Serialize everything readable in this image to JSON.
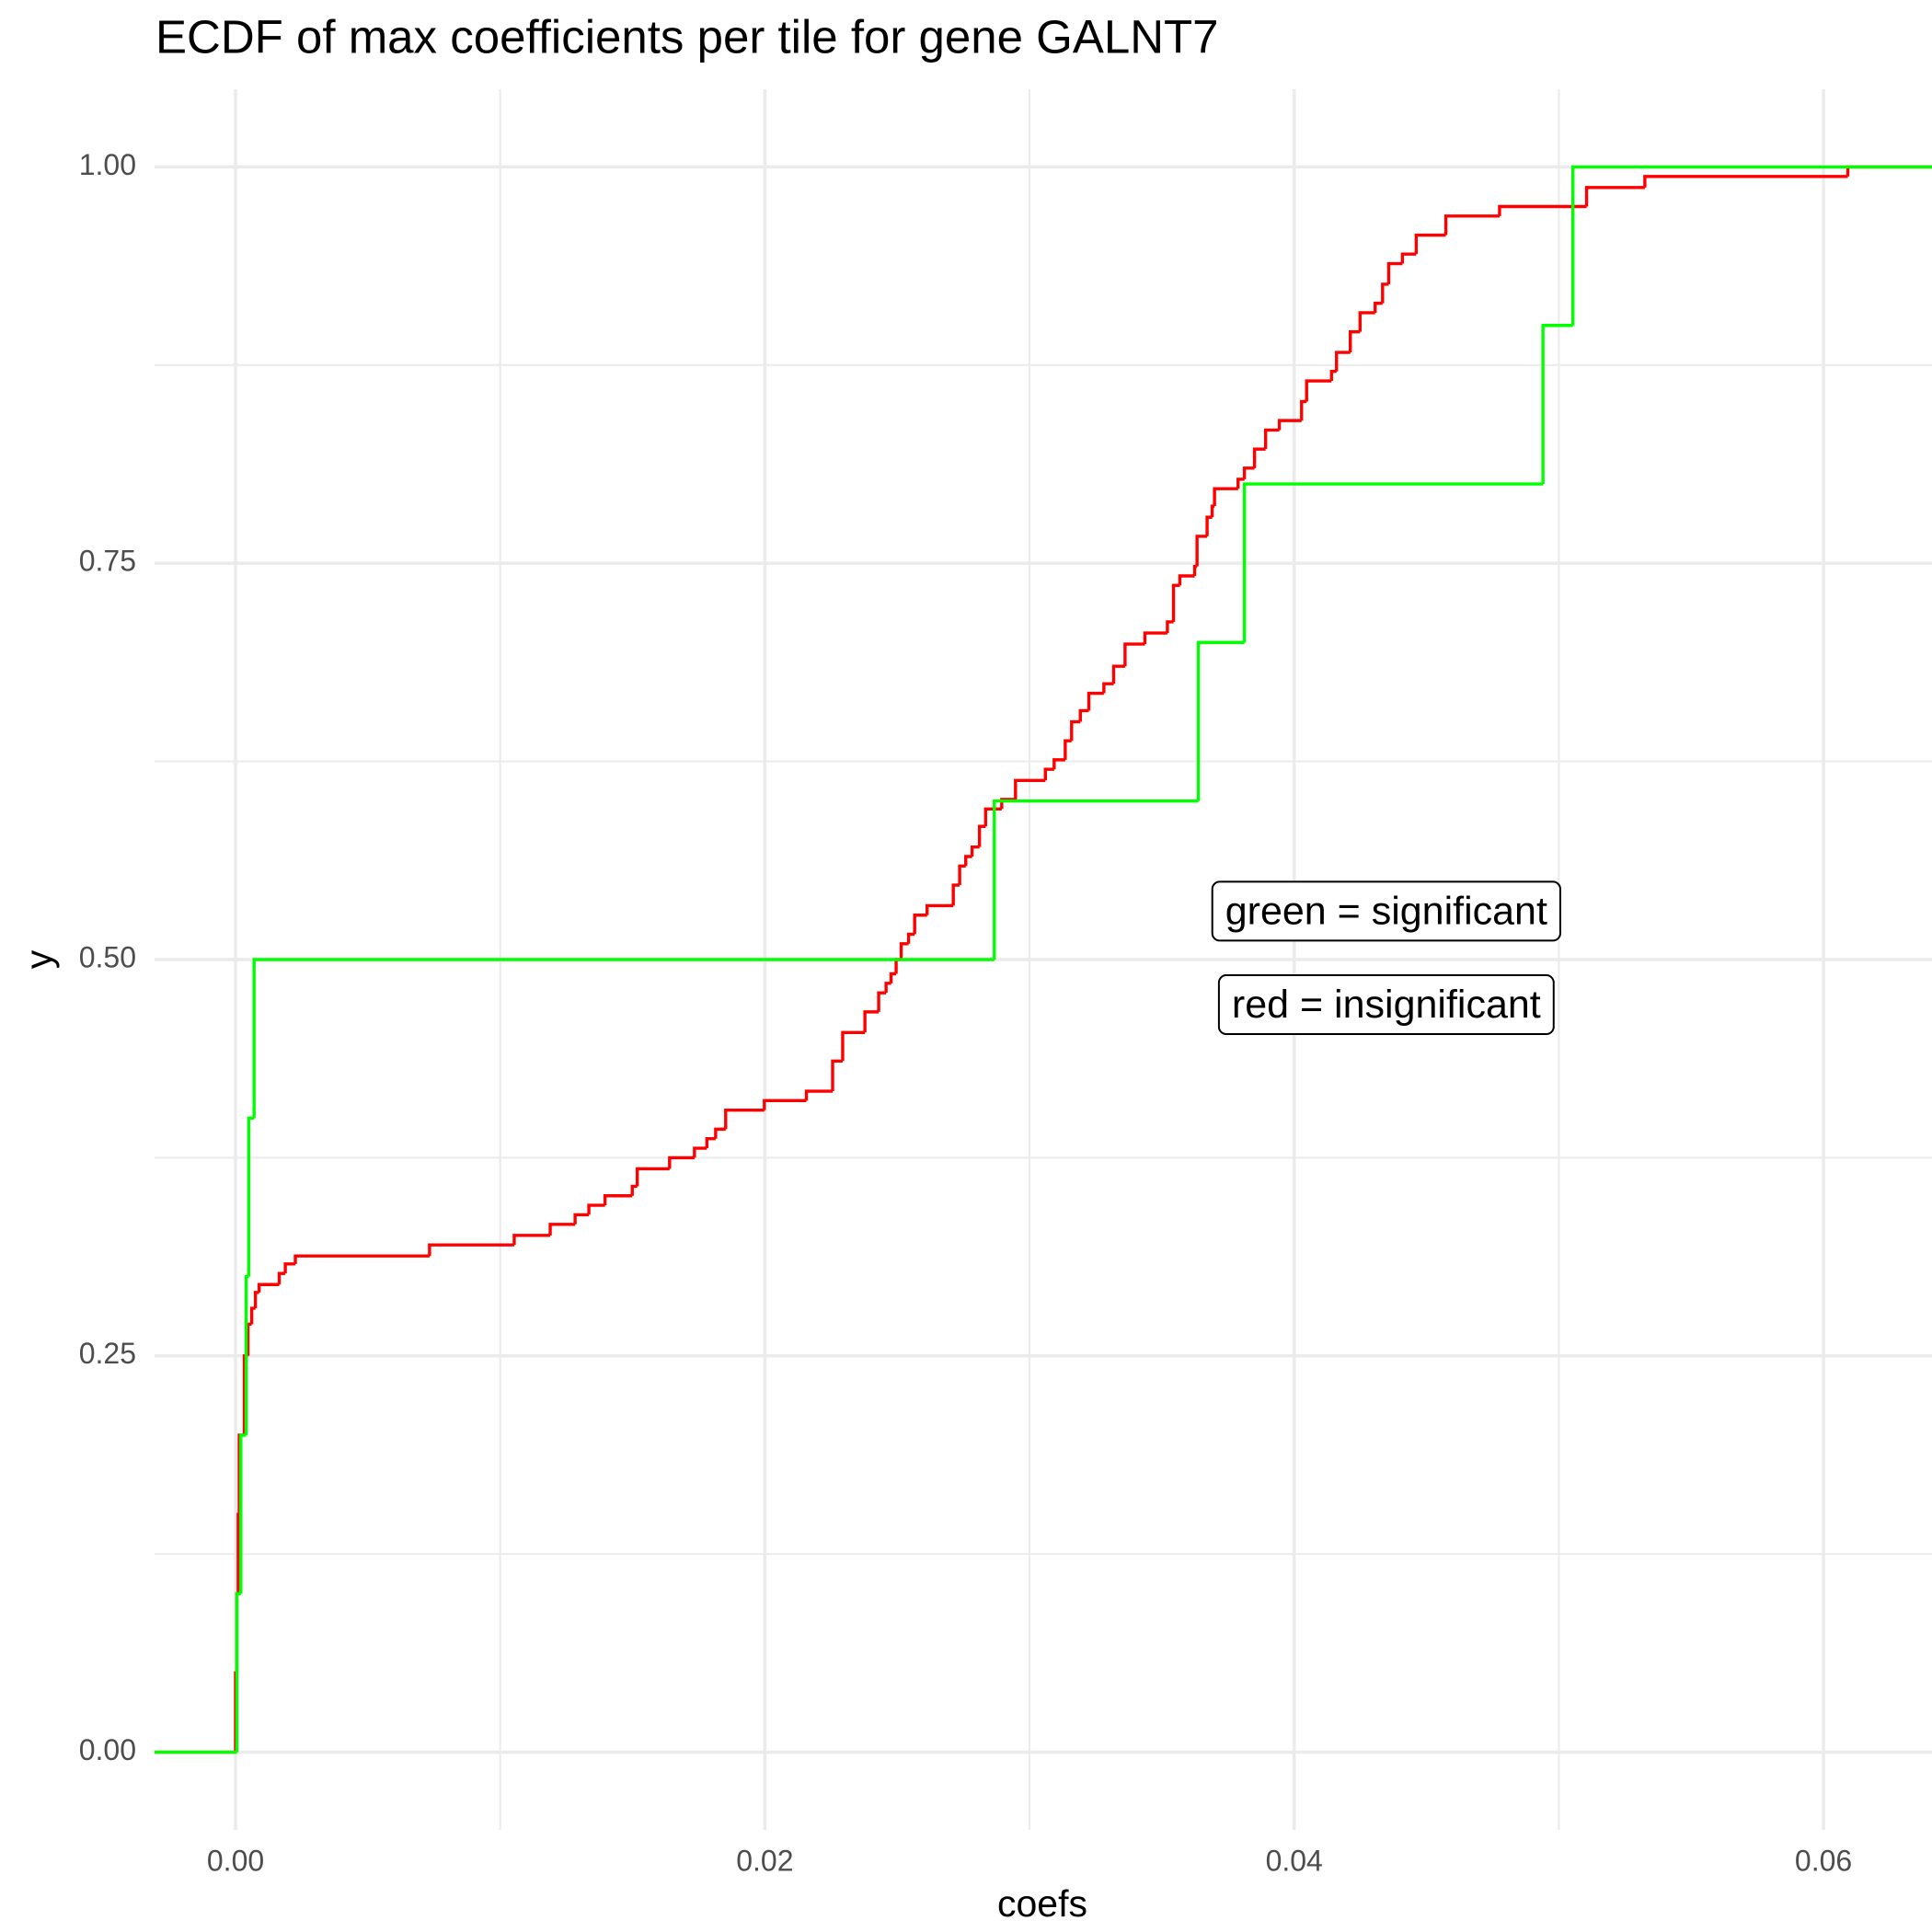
{
  "chart_data": {
    "type": "ecdf",
    "title": "ECDF of max coefficients per tile for gene GALNT7",
    "x_label": "coefs",
    "y_label": "y",
    "xlim": [
      -0.00306,
      0.0641
    ],
    "ylim": [
      -0.049,
      1.049
    ],
    "xticks": [
      {
        "value": 0,
        "label": "0.00"
      },
      0.02,
      0.04,
      0.06
    ],
    "yticks": [
      {
        "value": 0,
        "label": "0.00"
      },
      0.25,
      {
        "value": 0.5,
        "label": "0.50"
      },
      0.75,
      {
        "value": 1,
        "label": "1.00"
      }
    ],
    "minor_xticks": [
      0.01,
      0.03,
      0.05
    ],
    "minor_yticks": [
      0.125,
      0.375,
      0.625,
      0.875
    ],
    "grid": true,
    "series": [
      {
        "color": "#ff0000",
        "x": [
          0,
          5e-05,
          0.0001,
          0.00014,
          0.00033,
          0.00047,
          0.00061,
          0.00075,
          0.00089,
          0.00165,
          0.00188,
          0.00226,
          0.00733,
          0.01053,
          0.01189,
          0.01283,
          0.01335,
          0.01396,
          0.01499,
          0.01518,
          0.0164,
          0.01734,
          0.01781,
          0.01814,
          0.01852,
          0.01998,
          0.02157,
          0.02256,
          0.02294,
          0.02378,
          0.0243,
          0.02458,
          0.02477,
          0.02496,
          0.02515,
          0.02543,
          0.02566,
          0.02613,
          0.02712,
          0.02736,
          0.02759,
          0.02783,
          0.02811,
          0.02834,
          0.02895,
          0.02947,
          0.0306,
          0.03093,
          0.03135,
          0.03159,
          0.03192,
          0.03224,
          0.03281,
          0.03318,
          0.03361,
          0.03436,
          0.03521,
          0.03544,
          0.03568,
          0.03624,
          0.03633,
          0.03671,
          0.0369,
          0.03699,
          0.03788,
          0.03812,
          0.0385,
          0.03892,
          0.03944,
          0.04028,
          0.04047,
          0.04141,
          0.0416,
          0.04212,
          0.04249,
          0.04306,
          0.04334,
          0.04357,
          0.04409,
          0.04461,
          0.04573,
          0.04776,
          0.05105,
          0.05325,
          0.06092
        ],
        "values": [
          0.05,
          0.1,
          0.15,
          0.2,
          0.25,
          0.27,
          0.28,
          0.29,
          0.295,
          0.302,
          0.308,
          0.313,
          0.32,
          0.326,
          0.333,
          0.339,
          0.345,
          0.351,
          0.357,
          0.368,
          0.375,
          0.381,
          0.387,
          0.393,
          0.405,
          0.411,
          0.417,
          0.436,
          0.454,
          0.467,
          0.479,
          0.485,
          0.491,
          0.5,
          0.51,
          0.516,
          0.528,
          0.534,
          0.547,
          0.559,
          0.565,
          0.571,
          0.584,
          0.595,
          0.601,
          0.613,
          0.62,
          0.626,
          0.638,
          0.65,
          0.657,
          0.668,
          0.674,
          0.685,
          0.699,
          0.706,
          0.713,
          0.736,
          0.742,
          0.748,
          0.767,
          0.779,
          0.786,
          0.797,
          0.803,
          0.81,
          0.822,
          0.834,
          0.84,
          0.852,
          0.865,
          0.871,
          0.883,
          0.896,
          0.908,
          0.914,
          0.926,
          0.939,
          0.945,
          0.957,
          0.969,
          0.975,
          0.987,
          0.994,
          1.0
        ]
      },
      {
        "color": "#00ff00",
        "x": [
          5e-05,
          0.0002,
          0.0004,
          0.0005,
          0.0007,
          0.02867,
          0.03638,
          0.03812,
          0.0494,
          0.05053
        ],
        "values": [
          0.1,
          0.2,
          0.3,
          0.4,
          0.5,
          0.6,
          0.7,
          0.8,
          0.9,
          1.0
        ]
      }
    ],
    "annotations": [
      {
        "text": "green = significant",
        "x": 0.04348,
        "y": 0.529
      },
      {
        "text": "red = insignificant",
        "x": 0.04348,
        "y": 0.47
      }
    ]
  }
}
